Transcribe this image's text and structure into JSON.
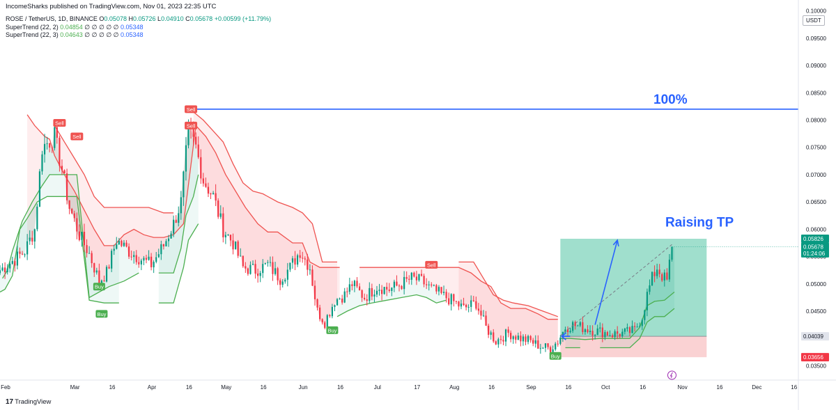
{
  "published": "IncomeSharks published on TradingView.com, Nov 01, 2023 22:35 UTC",
  "symbol": {
    "name": "ROSE / TetherUS, 1D, BINANCE",
    "o_label": "O",
    "o": "0.05078",
    "h_label": "H",
    "h": "0.05726",
    "l_label": "L",
    "l": "0.04910",
    "c_label": "C",
    "c": "0.05678",
    "change": "+0.00599 (+11.79%)"
  },
  "indicators": [
    {
      "label": "SuperTrend (22, 2)",
      "v1": "0.04854",
      "zeros": "∅ ∅ ∅ ∅ ∅",
      "v2": "0.05348"
    },
    {
      "label": "SuperTrend (22, 3)",
      "v1": "0.04643",
      "zeros": "∅ ∅ ∅ ∅ ∅",
      "v2": "0.05348"
    }
  ],
  "currency": "USDT",
  "brand": {
    "mark": "17",
    "name": "TradingView"
  },
  "colors": {
    "up": "#089981",
    "down": "#f23645",
    "st_red": "#ef5350",
    "st_green": "#4caf50",
    "line_blue": "#2962ff",
    "text_blue": "#2962ff",
    "tp_zone": "#60c9ab",
    "sl_zone": "#f7b4b6"
  },
  "price_labels": [
    {
      "text": "0.05826",
      "value": 0.05826,
      "bg": "#089981"
    },
    {
      "text": "0.05678",
      "value": 0.05678,
      "bg": "#089981"
    },
    {
      "text": "01:24:06",
      "value": 0.0556,
      "bg": "#089981"
    },
    {
      "text": "0.04039",
      "value": 0.04039,
      "bg": "#e0e3eb"
    },
    {
      "text": "0.03656",
      "value": 0.03656,
      "bg": "#f23645"
    }
  ],
  "chart_data": {
    "type": "candlestick",
    "title": "ROSE / TetherUS, 1D, BINANCE",
    "x_ticks": [
      "Feb",
      "Mar",
      "16",
      "Apr",
      "16",
      "May",
      "16",
      "Jun",
      "16",
      "Jul",
      "17",
      "Aug",
      "16",
      "Sep",
      "16",
      "Oct",
      "16",
      "Nov",
      "16",
      "Dec",
      "16"
    ],
    "x_tick_days": [
      0,
      28,
      43,
      59,
      74,
      89,
      104,
      120,
      135,
      150,
      166,
      181,
      196,
      212,
      227,
      242,
      257,
      273,
      288,
      303,
      318
    ],
    "y_ticks": [
      "0.10000",
      "0.09500",
      "0.09000",
      "0.08500",
      "0.08000",
      "0.07500",
      "0.07000",
      "0.06500",
      "0.06000",
      "0.05500",
      "0.05000",
      "0.04500",
      "0.04000",
      "0.03500"
    ],
    "ylim": [
      0.0325,
      0.102
    ],
    "xlim": [
      0,
      322
    ],
    "log_scale": false,
    "grid": false,
    "close_anchors": [
      [
        0,
        0.0525
      ],
      [
        6,
        0.0545
      ],
      [
        10,
        0.056
      ],
      [
        14,
        0.06
      ],
      [
        17,
        0.075
      ],
      [
        22,
        0.077
      ],
      [
        25,
        0.071
      ],
      [
        28,
        0.064
      ],
      [
        32,
        0.059
      ],
      [
        36,
        0.0555
      ],
      [
        40,
        0.0505
      ],
      [
        43,
        0.052
      ],
      [
        47,
        0.058
      ],
      [
        52,
        0.056
      ],
      [
        57,
        0.0545
      ],
      [
        61,
        0.0535
      ],
      [
        66,
        0.057
      ],
      [
        70,
        0.061
      ],
      [
        73,
        0.065
      ],
      [
        76,
        0.078
      ],
      [
        79,
        0.075
      ],
      [
        82,
        0.069
      ],
      [
        86,
        0.066
      ],
      [
        90,
        0.06
      ],
      [
        94,
        0.0575
      ],
      [
        98,
        0.053
      ],
      [
        103,
        0.0525
      ],
      [
        108,
        0.0535
      ],
      [
        113,
        0.051
      ],
      [
        117,
        0.053
      ],
      [
        121,
        0.056
      ],
      [
        125,
        0.053
      ],
      [
        128,
        0.045
      ],
      [
        131,
        0.043
      ],
      [
        135,
        0.047
      ],
      [
        139,
        0.048
      ],
      [
        142,
        0.05
      ],
      [
        147,
        0.0475
      ],
      [
        152,
        0.0495
      ],
      [
        157,
        0.049
      ],
      [
        162,
        0.05
      ],
      [
        166,
        0.051
      ],
      [
        170,
        0.0505
      ],
      [
        174,
        0.049
      ],
      [
        178,
        0.048
      ],
      [
        182,
        0.047
      ],
      [
        187,
        0.0455
      ],
      [
        192,
        0.0465
      ],
      [
        196,
        0.042
      ],
      [
        200,
        0.0395
      ],
      [
        205,
        0.041
      ],
      [
        210,
        0.04
      ],
      [
        214,
        0.0395
      ],
      [
        218,
        0.0385
      ],
      [
        222,
        0.0382
      ],
      [
        225,
        0.0395
      ],
      [
        228,
        0.042
      ],
      [
        231,
        0.0425
      ],
      [
        235,
        0.042
      ],
      [
        239,
        0.0415
      ],
      [
        243,
        0.0412
      ],
      [
        247,
        0.0408
      ],
      [
        252,
        0.041
      ],
      [
        256,
        0.0415
      ],
      [
        259,
        0.044
      ],
      [
        261,
        0.048
      ],
      [
        263,
        0.051
      ],
      [
        265,
        0.053
      ],
      [
        267,
        0.0515
      ],
      [
        269,
        0.0505
      ],
      [
        271,
        0.0568
      ]
    ],
    "supertrend_22_2": {
      "red": [
        [
          11,
          0.081
        ],
        [
          14,
          0.079
        ],
        [
          18,
          0.077
        ],
        [
          20,
          0.0765
        ],
        [
          22,
          0.0735
        ],
        [
          26,
          0.07
        ],
        [
          30,
          0.067
        ],
        [
          34,
          0.0635
        ],
        [
          38,
          0.06
        ],
        [
          42,
          0.057
        ],
        [
          46,
          0.057
        ],
        [
          50,
          0.059
        ],
        [
          54,
          0.06
        ],
        [
          58,
          0.059
        ],
        [
          62,
          0.0585
        ],
        [
          66,
          0.0585
        ],
        [
          70,
          0.059
        ],
        [
          74,
          0.061
        ],
        [
          79,
          0.079
        ],
        [
          83,
          0.077
        ],
        [
          87,
          0.074
        ],
        [
          91,
          0.07
        ],
        [
          95,
          0.067
        ],
        [
          99,
          0.064
        ],
        [
          104,
          0.061
        ],
        [
          108,
          0.0595
        ],
        [
          112,
          0.0595
        ],
        [
          118,
          0.0575
        ],
        [
          122,
          0.0575
        ],
        [
          125,
          0.054
        ],
        [
          129,
          0.053
        ],
        [
          133,
          0.053
        ],
        [
          137,
          0.053
        ],
        [
          145,
          0.053
        ],
        [
          150,
          0.053
        ],
        [
          156,
          0.053
        ],
        [
          162,
          0.053
        ],
        [
          168,
          0.053
        ],
        [
          174,
          0.053
        ],
        [
          180,
          0.053
        ],
        [
          185,
          0.053
        ],
        [
          190,
          0.052
        ],
        [
          194,
          0.0505
        ],
        [
          198,
          0.0495
        ],
        [
          202,
          0.0465
        ],
        [
          206,
          0.0455
        ],
        [
          212,
          0.0455
        ],
        [
          217,
          0.0445
        ],
        [
          221,
          0.0435
        ],
        [
          225,
          0.0435
        ]
      ],
      "green": [
        [
          1,
          0.051
        ],
        [
          3,
          0.0525
        ],
        [
          5,
          0.056
        ],
        [
          9,
          0.0615
        ],
        [
          13,
          0.065
        ],
        [
          17,
          0.068
        ],
        [
          20,
          0.07
        ],
        [
          23,
          0.07
        ],
        [
          26,
          0.07
        ],
        [
          29,
          0.07
        ],
        [
          31,
          0.07
        ],
        [
          36,
          0.0475
        ],
        [
          40,
          0.0485
        ],
        [
          44,
          0.0495
        ],
        [
          50,
          0.0505
        ],
        [
          56,
          0.052
        ],
        [
          64,
          0.052
        ],
        [
          70,
          0.052
        ],
        [
          73,
          0.0565
        ],
        [
          75,
          0.0625
        ],
        [
          78,
          0.066
        ],
        [
          80,
          0.07
        ],
        [
          136,
          0.044
        ],
        [
          140,
          0.045
        ],
        [
          145,
          0.046
        ],
        [
          150,
          0.0465
        ],
        [
          156,
          0.047
        ],
        [
          162,
          0.0475
        ],
        [
          168,
          0.048
        ],
        [
          172,
          0.0475
        ],
        [
          176,
          0.0465
        ],
        [
          180,
          0.047
        ],
        [
          226,
          0.04
        ],
        [
          230,
          0.04
        ],
        [
          236,
          0.0398
        ],
        [
          242,
          0.04
        ],
        [
          248,
          0.04
        ],
        [
          254,
          0.04
        ],
        [
          258,
          0.042
        ],
        [
          261,
          0.046
        ],
        [
          264,
          0.0468
        ],
        [
          268,
          0.047
        ],
        [
          272,
          0.0485
        ]
      ]
    },
    "supertrend_22_3": {
      "red": [
        [
          22,
          0.079
        ],
        [
          26,
          0.076
        ],
        [
          30,
          0.073
        ],
        [
          34,
          0.07
        ],
        [
          38,
          0.066
        ],
        [
          42,
          0.064
        ],
        [
          48,
          0.064
        ],
        [
          54,
          0.064
        ],
        [
          60,
          0.064
        ],
        [
          66,
          0.063
        ],
        [
          70,
          0.063
        ],
        [
          78,
          0.0815
        ],
        [
          82,
          0.08
        ],
        [
          86,
          0.078
        ],
        [
          90,
          0.076
        ],
        [
          94,
          0.072
        ],
        [
          98,
          0.0685
        ],
        [
          102,
          0.067
        ],
        [
          106,
          0.0665
        ],
        [
          112,
          0.065
        ],
        [
          118,
          0.064
        ],
        [
          122,
          0.063
        ],
        [
          126,
          0.061
        ],
        [
          130,
          0.054
        ],
        [
          136,
          0.054
        ],
        [
          145,
          0.054
        ],
        [
          155,
          0.054
        ],
        [
          165,
          0.054
        ],
        [
          175,
          0.054
        ],
        [
          185,
          0.054
        ],
        [
          191,
          0.054
        ],
        [
          195,
          0.051
        ],
        [
          199,
          0.048
        ],
        [
          203,
          0.047
        ],
        [
          207,
          0.0465
        ],
        [
          213,
          0.046
        ],
        [
          219,
          0.045
        ],
        [
          225,
          0.044
        ]
      ],
      "green": [
        [
          0,
          0.0485
        ],
        [
          2,
          0.049
        ],
        [
          5,
          0.0515
        ],
        [
          8,
          0.06
        ],
        [
          11,
          0.062
        ],
        [
          15,
          0.065
        ],
        [
          19,
          0.066
        ],
        [
          23,
          0.066
        ],
        [
          27,
          0.066
        ],
        [
          31,
          0.066
        ],
        [
          36,
          0.047
        ],
        [
          42,
          0.0465
        ],
        [
          48,
          0.0465
        ],
        [
          56,
          0.0465
        ],
        [
          64,
          0.0465
        ],
        [
          70,
          0.0465
        ],
        [
          74,
          0.053
        ],
        [
          76,
          0.058
        ],
        [
          80,
          0.061
        ],
        [
          228,
          0.0383
        ],
        [
          234,
          0.0383
        ],
        [
          242,
          0.0383
        ],
        [
          248,
          0.0383
        ],
        [
          254,
          0.0383
        ],
        [
          258,
          0.04
        ],
        [
          261,
          0.043
        ],
        [
          264,
          0.044
        ],
        [
          268,
          0.044
        ],
        [
          272,
          0.0455
        ]
      ]
    },
    "signals": [
      {
        "type": "Sell",
        "day": 24,
        "value": 0.0795
      },
      {
        "type": "Sell",
        "day": 31,
        "value": 0.077
      },
      {
        "type": "Buy",
        "day": 40,
        "value": 0.0495
      },
      {
        "type": "Buy",
        "day": 41,
        "value": 0.0445
      },
      {
        "type": "Sell",
        "day": 77,
        "value": 0.082
      },
      {
        "type": "Sell",
        "day": 77,
        "value": 0.079
      },
      {
        "type": "Buy",
        "day": 134,
        "value": 0.0415
      },
      {
        "type": "Sell",
        "day": 174,
        "value": 0.0535
      },
      {
        "type": "Buy",
        "day": 224,
        "value": 0.0368
      }
    ],
    "horizontal_line": {
      "value": 0.082,
      "x_start": 79,
      "label": "100%"
    },
    "position": {
      "x_start": 226,
      "x_end": 285,
      "entry": 0.04039,
      "target": 0.05826,
      "stop": 0.03656
    },
    "arrow": {
      "x1": 240,
      "y1": 0.0425,
      "x2": 249,
      "y2": 0.058
    },
    "dashed_trend": {
      "x1": 226,
      "y1": 0.0405,
      "x2": 271,
      "y2": 0.0572
    },
    "annotation": {
      "text": "Raising TP",
      "day": 267,
      "value": 0.0605
    }
  }
}
